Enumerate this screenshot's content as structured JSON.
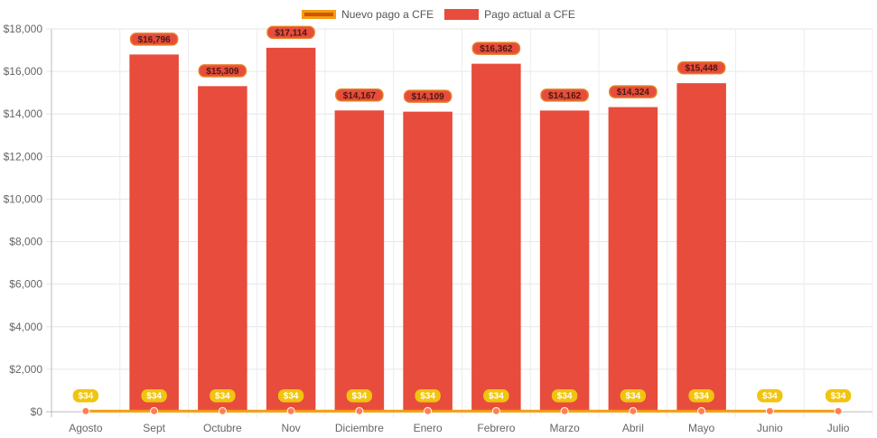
{
  "chart_data": {
    "type": "bar",
    "categories": [
      "Agosto",
      "Sept",
      "Octubre",
      "Nov",
      "Diciembre",
      "Enero",
      "Febrero",
      "Marzo",
      "Abril",
      "Mayo",
      "Junio",
      "Julio"
    ],
    "series": [
      {
        "name": "Nuevo pago a CFE",
        "type": "line",
        "values": [
          34,
          34,
          34,
          34,
          34,
          34,
          34,
          34,
          34,
          34,
          34,
          34
        ],
        "labels": [
          "$34",
          "$34",
          "$34",
          "$34",
          "$34",
          "$34",
          "$34",
          "$34",
          "$34",
          "$34",
          "$34",
          "$34"
        ],
        "color": "#f39c12",
        "marker_color": "#ff7f50"
      },
      {
        "name": "Pago actual a CFE",
        "type": "bar",
        "values": [
          null,
          16796,
          15309,
          17114,
          14167,
          14109,
          16362,
          14162,
          14324,
          15448,
          null,
          null
        ],
        "labels": [
          "",
          "$16,796",
          "$15,309",
          "$17,114",
          "$14,167",
          "$14,109",
          "$16,362",
          "$14,162",
          "$14,324",
          "$15,448",
          "",
          ""
        ],
        "color": "#e74c3c",
        "label_color": "#e67e22"
      }
    ],
    "yticks": [
      "$0",
      "$2,000",
      "$4,000",
      "$6,000",
      "$8,000",
      "$10,000",
      "$12,000",
      "$14,000",
      "$16,000",
      "$18,000"
    ],
    "ylim": [
      0,
      18000
    ],
    "grid": true,
    "legend": "top-center"
  }
}
